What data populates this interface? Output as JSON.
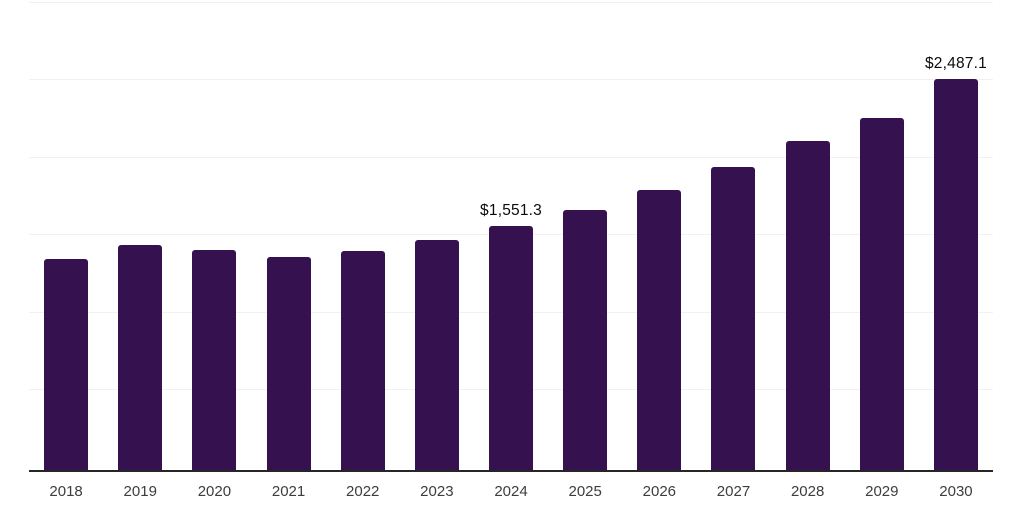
{
  "chart_data": {
    "type": "bar",
    "title": "",
    "xlabel": "",
    "ylabel": "",
    "categories": [
      "2018",
      "2019",
      "2020",
      "2021",
      "2022",
      "2023",
      "2024",
      "2025",
      "2026",
      "2027",
      "2028",
      "2029",
      "2030"
    ],
    "values": [
      1338,
      1430,
      1395,
      1353,
      1392,
      1460,
      1551.3,
      1653,
      1778,
      1923,
      2088,
      2236,
      2487.1
    ],
    "value_labels": [
      {
        "category": "2024",
        "text": "$1,551.3"
      },
      {
        "category": "2030",
        "text": "$2,487.1"
      }
    ],
    "ylim": [
      0,
      3000
    ],
    "gridline_values": [
      500,
      1000,
      1500,
      2000,
      2500,
      3000
    ],
    "y_tick_labels_shown": false,
    "grid": "horizontal",
    "legend": "none",
    "colors": {
      "bar": "#351150",
      "axis_line": "#262626",
      "gridline": "#f1f1f1",
      "tick_label": "#3d3d3d",
      "data_label": "#0b0b0b",
      "background": "#ffffff"
    }
  }
}
